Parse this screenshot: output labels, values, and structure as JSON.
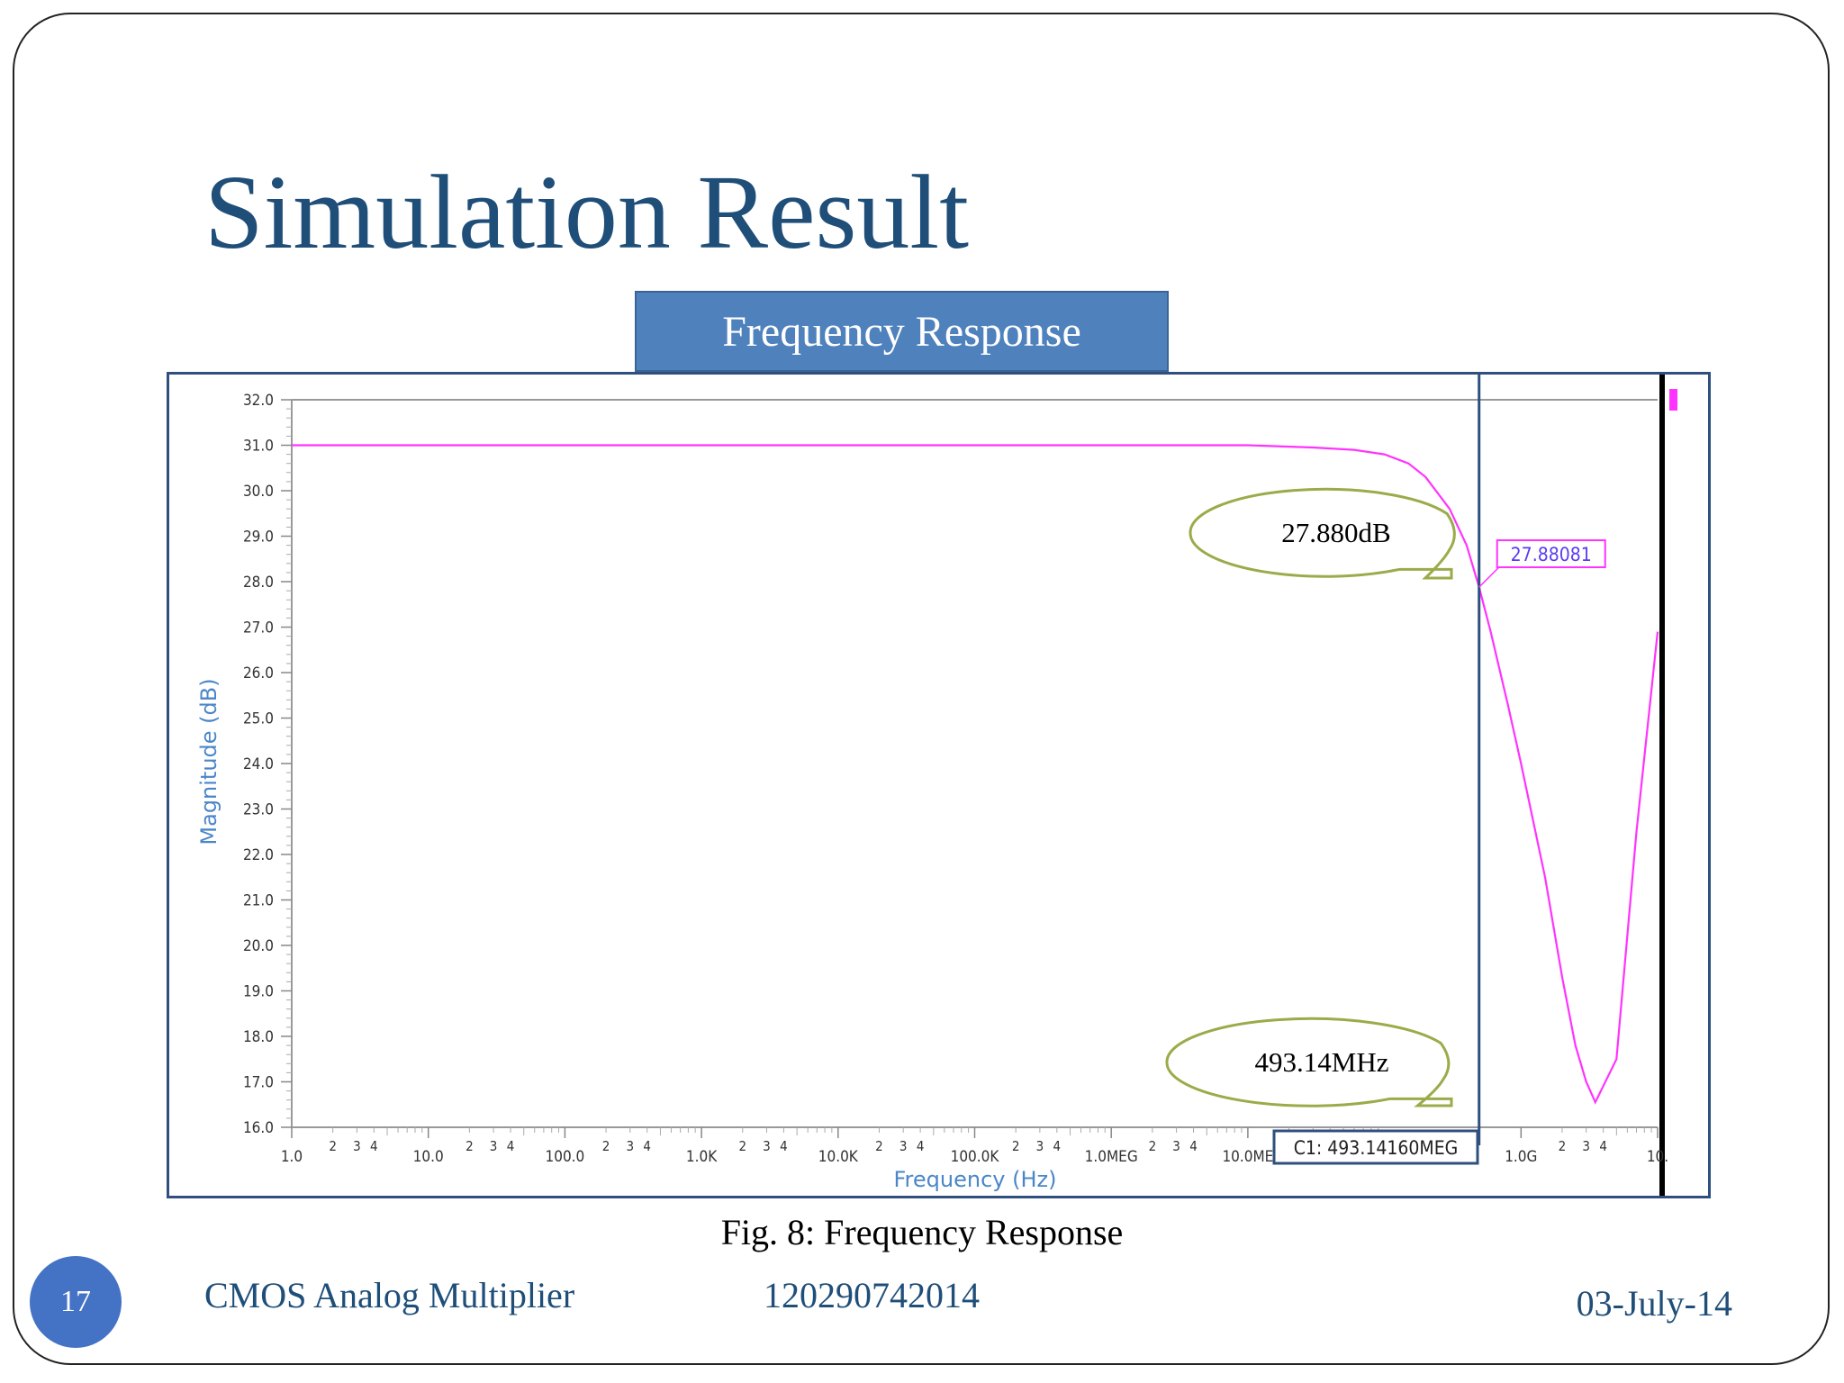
{
  "slide": {
    "title": "Simulation Result",
    "chart_header": "Frequency Response",
    "caption": "Fig. 8: Frequency Response",
    "page_number": "17",
    "footer_left": "CMOS Analog Multiplier",
    "footer_center": "120290742014",
    "footer_right": "03-July-14"
  },
  "colors": {
    "title": "#1f4e79",
    "header_bg": "#4f81bd",
    "curve": "#ff33ff",
    "cursor": "#2f4f7f",
    "callout": "#9bab4a",
    "axis_label": "#4a86c8"
  },
  "chart_data": {
    "type": "line",
    "xlabel": "Frequency (Hz)",
    "ylabel": "Magnitude (dB)",
    "x_scale": "log",
    "xlim": [
      1,
      10000000000
    ],
    "ylim": [
      16,
      32
    ],
    "x_major_ticks": [
      {
        "value": 1,
        "label": "1.0"
      },
      {
        "value": 10,
        "label": "10.0"
      },
      {
        "value": 100,
        "label": "100.0"
      },
      {
        "value": 1000,
        "label": "1.0K"
      },
      {
        "value": 10000,
        "label": "10.0K"
      },
      {
        "value": 100000,
        "label": "100.0K"
      },
      {
        "value": 1000000,
        "label": "1.0MEG"
      },
      {
        "value": 10000000,
        "label": "10.0ME"
      },
      {
        "value": 1000000000,
        "label": "1.0G"
      },
      {
        "value": 10000000000,
        "label": "10."
      }
    ],
    "minor_tick_labels": [
      "2",
      "3",
      "4"
    ],
    "y_ticks": [
      "32.0",
      "31.0",
      "30.0",
      "29.0",
      "28.0",
      "27.0",
      "26.0",
      "25.0",
      "24.0",
      "23.0",
      "22.0",
      "21.0",
      "20.0",
      "19.0",
      "18.0",
      "17.0",
      "16.0"
    ],
    "series": [
      {
        "x": [
          1,
          1000,
          10000000,
          30000000,
          60000000,
          100000000,
          150000000,
          200000000,
          300000000,
          400000000,
          493141600,
          600000000,
          800000000,
          1000000000,
          1500000000,
          2000000000,
          2500000000,
          3000000000,
          3500000000,
          5000000000,
          7000000000,
          10000000000
        ],
        "y": [
          31.0,
          31.0,
          31.0,
          30.95,
          30.9,
          30.8,
          30.6,
          30.3,
          29.6,
          28.8,
          27.88,
          26.9,
          25.3,
          24.0,
          21.5,
          19.3,
          17.8,
          17.0,
          16.55,
          17.5,
          22.5,
          26.9
        ]
      }
    ],
    "cursor": {
      "label": "C1: 493.14160MEG",
      "x": 493141600,
      "y_readout": "27.88081"
    },
    "callouts": [
      {
        "text": "27.880dB"
      },
      {
        "text": "493.14MHz"
      }
    ]
  }
}
